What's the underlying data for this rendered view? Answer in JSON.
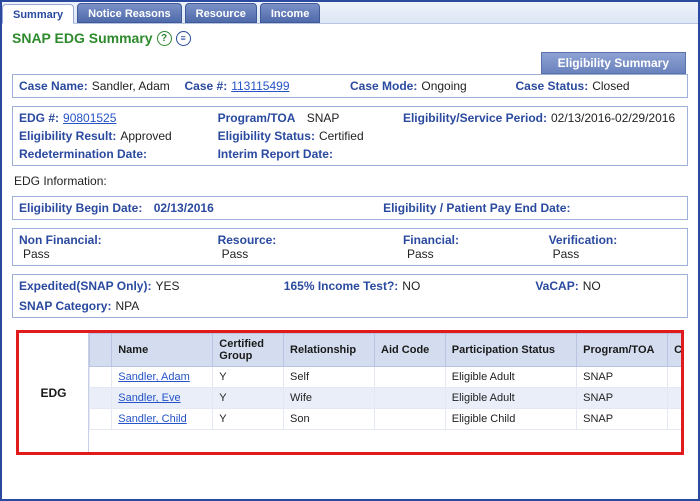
{
  "tabs": {
    "summary": "Summary",
    "notice": "Notice Reasons",
    "resource": "Resource",
    "income": "Income"
  },
  "page_title": "SNAP EDG Summary",
  "eligibility_banner": "Eligibility Summary",
  "case": {
    "name_label": "Case Name:",
    "name_value": "Sandler, Adam",
    "num_label": "Case #:",
    "num_value": "113115499",
    "mode_label": "Case Mode:",
    "mode_value": "Ongoing",
    "status_label": "Case Status:",
    "status_value": "Closed"
  },
  "edg": {
    "num_label": "EDG #:",
    "num_value": "90801525",
    "program_label": "Program/TOA",
    "program_value": "SNAP",
    "period_label": "Eligibility/Service Period:",
    "period_value": "02/13/2016-02/29/2016",
    "result_label": "Eligibility Result:",
    "result_value": "Approved",
    "estatus_label": "Eligibility Status:",
    "estatus_value": "Certified",
    "redeterm_label": "Redetermination Date:",
    "interim_label": "Interim Report Date:"
  },
  "edginfo_label": "EDG Information:",
  "dates": {
    "begin_label": "Eligibility Begin Date:",
    "begin_value": "02/13/2016",
    "end_label": "Eligibility / Patient Pay End Date:"
  },
  "status": {
    "nonfin_label": "Non Financial:",
    "nonfin_value": "Pass",
    "resource_label": "Resource:",
    "resource_value": "Pass",
    "financial_label": "Financial:",
    "financial_value": "Pass",
    "verif_label": "Verification:",
    "verif_value": "Pass"
  },
  "extra": {
    "exp_label": "Expedited(SNAP Only):",
    "exp_value": "YES",
    "inc_label": "165% Income Test?:",
    "inc_value": "NO",
    "vacap_label": "VaCAP:",
    "vacap_value": "NO",
    "cat_label": "SNAP Category:",
    "cat_value": "NPA"
  },
  "table": {
    "rowlabel": "EDG",
    "headers": {
      "name": "Name",
      "cert": "Certified Group",
      "rel": "Relationship",
      "aid": "Aid Code",
      "part": "Participation Status",
      "prog": "Program/TOA",
      "cov": "Coverage"
    },
    "rows": [
      {
        "name": "Sandler, Adam",
        "cert": "Y",
        "rel": "Self",
        "aid": "",
        "part": "Eligible Adult",
        "prog": "SNAP"
      },
      {
        "name": "Sandler, Eve",
        "cert": "Y",
        "rel": "Wife",
        "aid": "",
        "part": "Eligible Adult",
        "prog": "SNAP"
      },
      {
        "name": "Sandler, Child",
        "cert": "Y",
        "rel": "Son",
        "aid": "",
        "part": "Eligible Child",
        "prog": "SNAP"
      }
    ]
  }
}
